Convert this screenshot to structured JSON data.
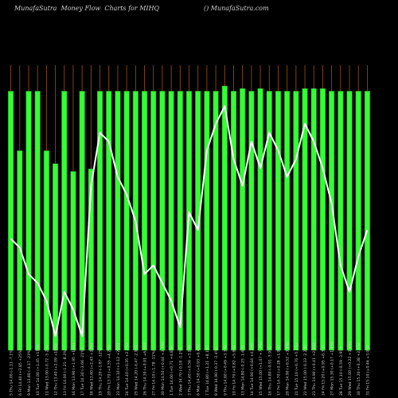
{
  "header": {
    "left": "MunafaSutra  Money Flow  Charts for MIHQ",
    "right": "() MunafaSutra.com"
  },
  "colors": {
    "background": "#000000",
    "bar": "#33ff33",
    "bar_edge": "#1f9f1f",
    "grid": "#a0520a",
    "line": "#ffffff",
    "text": "#cfcfcf"
  },
  "chart_data": {
    "type": "bar",
    "grid": true,
    "categories": [
      "5 Thu 14.00 (-1.11 -7.1%)",
      "6 Fri 14.40 (+2.85 +25%)",
      "9 Mon 13.80 (-4.17 -23%)",
      "10 Tue 14.00 (+1.45 +11%)",
      "11 Wed 13.00 (-0.72 -5.2%)",
      "12 Thu 13.40 (+2.09 +18%)",
      "13 Fri 14.00 (-1.21 -8.3%)",
      "16 Mon 13.90 (+1.95 +16%)",
      "17 Tue 14.30 (-3.66 -21%)",
      "18 Wed 13.60 (+2.45 +22%)",
      "19 Thu 14.20 (-1.87 -12%)",
      "20 Fri 13.70 (+0.55 +4.2%)",
      "23 Mon 14.10 (+3.12 +28%)",
      "24 Tue 14.40 (+0.35 +2.2%)",
      "25 Wed 14.20 (-0.47 -2.9%)",
      "26 Thu 14.30 (+0.91 +6.0%)",
      "27 Fri 14.10 (-1.78 -11%)",
      "30 Mon 14.50 (+0.44 +3.1%)",
      "1 Tue 14.60 (+0.71 +4.8%)",
      "2 Wed 14.70 (-0.18 -1.2%)",
      "3 Thu 14.40 (+0.56 +3.9%)",
      "6 Mon 14.50 (+0.93 +6.4%)",
      "7 Tue 14.80 (+1.21 +8.1%)",
      "8 Wed 14.90 (-0.37 -2.4%)",
      "9 Thu 14.60 (+0.49 +3.3%)",
      "10 Fri 14.70 (+0.82 +5.6%)",
      "13 Mon 14.80 (-0.25 -1.6%)",
      "14 Tue 14.90 (+0.64 +4.3%)",
      "15 Wed 15.00 (+1.07 +7.2%)",
      "16 Thu 14.80 (-0.91 -5.9%)",
      "17 Fri 14.70 (+0.28 +1.9%)",
      "20 Mon 14.90 (+0.52 +3.5%)",
      "21 Tue 15.10 (+0.76 +5.1%)",
      "22 Wed 15.00 (-0.33 -2.2%)",
      "23 Thu 14.90 (+0.41 +2.8%)",
      "24 Fri 15.20 (+0.95 +6.3%)",
      "27 Mon 15.30 (+0.17 +1.1%)",
      "28 Tue 15.10 (-0.59 -3.9%)",
      "29 Wed 15.00 (+0.22 +1.5%)",
      "30 Thu 15.20 (+0.38 +2.5%)",
      "31 Fri 15.10 (+0.46 +3.0%)"
    ],
    "values": [
      100,
      77,
      100,
      100,
      77,
      72,
      100,
      69,
      100,
      70,
      100,
      100,
      100,
      100,
      100,
      100,
      100,
      100,
      100,
      100,
      100,
      100,
      100,
      100,
      102,
      100,
      101,
      100,
      101,
      100,
      100,
      100,
      100,
      101,
      101,
      101,
      100,
      100,
      100,
      100,
      100
    ],
    "ylim": [
      0,
      110
    ],
    "line": {
      "values": [
        0.5,
        0.4,
        0.1,
        0.0,
        -0.2,
        -0.6,
        -0.1,
        -0.3,
        -0.6,
        1.1,
        1.7,
        1.6,
        1.2,
        1.0,
        0.7,
        0.1,
        0.2,
        0.0,
        -0.2,
        -0.5,
        0.8,
        0.6,
        1.5,
        1.8,
        2.0,
        1.4,
        1.1,
        1.6,
        1.3,
        1.7,
        1.5,
        1.2,
        1.4,
        1.8,
        1.6,
        1.3,
        0.9,
        0.2,
        -0.1,
        0.3,
        0.6
      ],
      "ylim": [
        -1.3,
        3.2
      ]
    }
  }
}
